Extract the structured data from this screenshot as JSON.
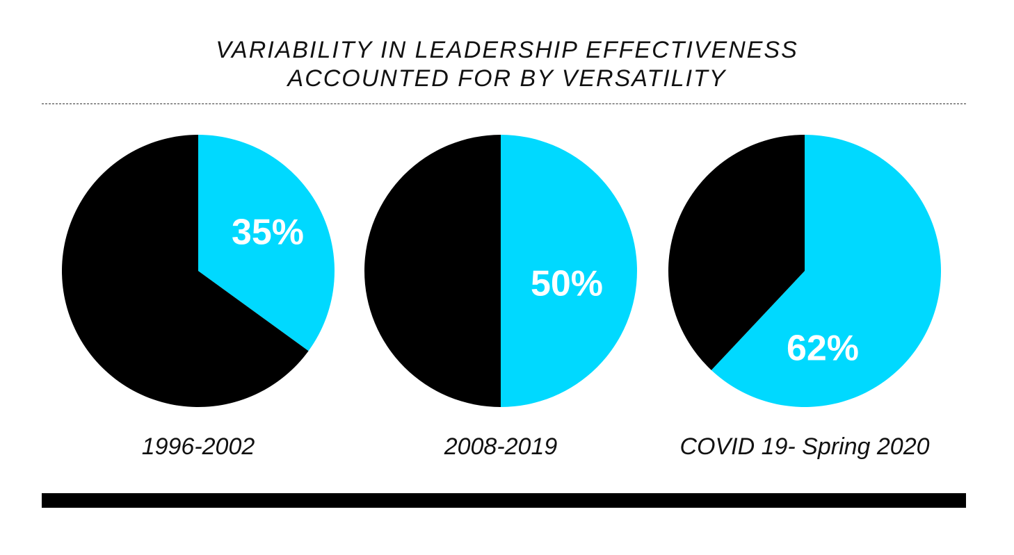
{
  "title_lines": [
    "VARIABILITY IN LEADERSHIP EFFECTIVENESS",
    "ACCOUNTED FOR BY VERSATILITY"
  ],
  "colors": {
    "highlight": "#00D9FF",
    "remainder": "#000000",
    "value_text": "#FFFFFF",
    "caption_text": "#111111"
  },
  "chart_data": [
    {
      "type": "pie",
      "category": "1996-2002",
      "slices": [
        {
          "value": 35,
          "color": "#00D9FF"
        },
        {
          "value": 65,
          "color": "#000000"
        }
      ],
      "label": "35%"
    },
    {
      "type": "pie",
      "category": "2008-2019",
      "slices": [
        {
          "value": 50,
          "color": "#00D9FF"
        },
        {
          "value": 50,
          "color": "#000000"
        }
      ],
      "label": "50%"
    },
    {
      "type": "pie",
      "category": "COVID 19- Spring 2020",
      "slices": [
        {
          "value": 62,
          "color": "#00D9FF"
        },
        {
          "value": 38,
          "color": "#000000"
        }
      ],
      "label": "62%"
    }
  ]
}
